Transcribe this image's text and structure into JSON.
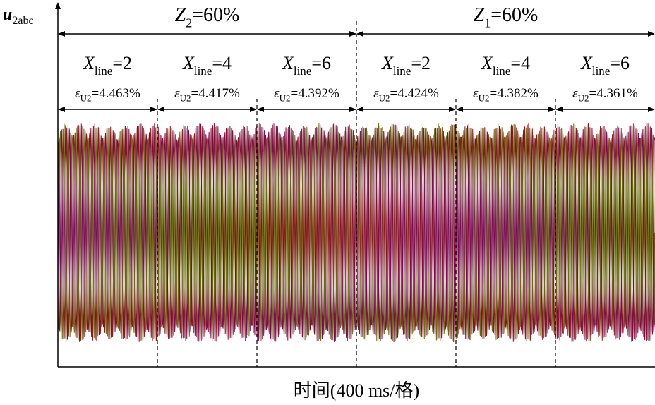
{
  "chart_data": {
    "type": "waveform",
    "y_label": {
      "symbol": "u",
      "sub": "2abc"
    },
    "x_label": "时间(400 ms/格)",
    "colors": [
      "#8b1a1a",
      "#7a0a5a",
      "#6b6b10"
    ],
    "groups": [
      {
        "symbol": "Z",
        "sub": "2",
        "text": "=60%"
      },
      {
        "symbol": "Z",
        "sub": "1",
        "text": "=60%"
      }
    ],
    "segments": [
      {
        "x": {
          "symbol": "X",
          "sub": "line",
          "text": "=2"
        },
        "e": {
          "symbol": "ε",
          "sub": "U2",
          "text": "=4.463%"
        }
      },
      {
        "x": {
          "symbol": "X",
          "sub": "line",
          "text": "=4"
        },
        "e": {
          "symbol": "ε",
          "sub": "U2",
          "text": "=4.417%"
        }
      },
      {
        "x": {
          "symbol": "X",
          "sub": "line",
          "text": "=6"
        },
        "e": {
          "symbol": "ε",
          "sub": "U2",
          "text": "=4.392%"
        }
      },
      {
        "x": {
          "symbol": "X",
          "sub": "line",
          "text": "=2"
        },
        "e": {
          "symbol": "ε",
          "sub": "U2",
          "text": "=4.424%"
        }
      },
      {
        "x": {
          "symbol": "X",
          "sub": "line",
          "text": "=4"
        },
        "e": {
          "symbol": "ε",
          "sub": "U2",
          "text": "=4.382%"
        }
      },
      {
        "x": {
          "symbol": "X",
          "sub": "line",
          "text": "=6"
        },
        "e": {
          "symbol": "ε",
          "sub": "U2",
          "text": "=4.361%"
        }
      }
    ]
  }
}
